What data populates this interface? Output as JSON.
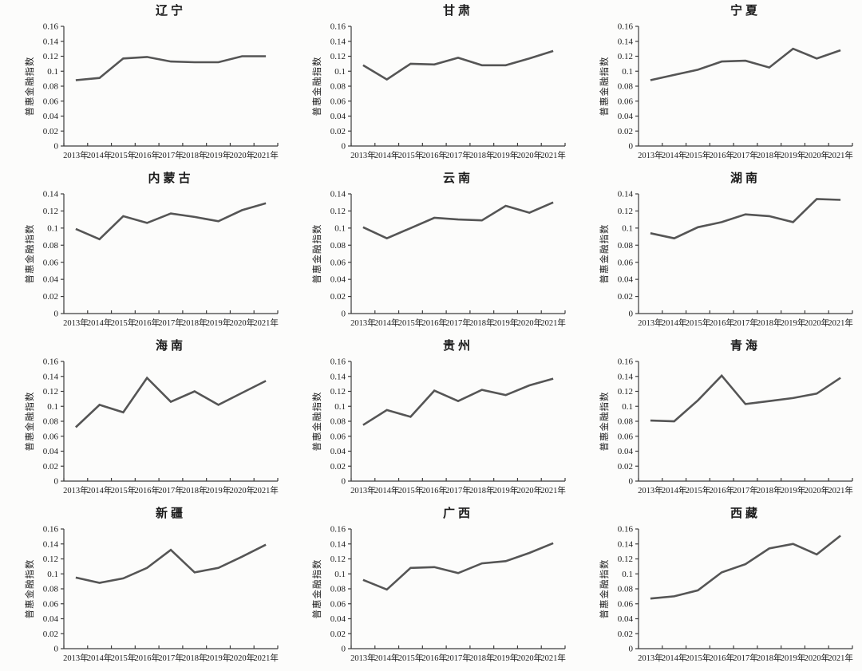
{
  "figure": {
    "background": "#fcfcfb",
    "line_color": "#555555",
    "axis_color": "#3d3d3d",
    "text_color": "#1b1b1b"
  },
  "chart_data": {
    "type": "line",
    "layout": {
      "rows": 4,
      "cols": 3,
      "legend": "none",
      "grid": "off"
    },
    "ylabel": "普惠金融指数",
    "x_categories": [
      "2013年",
      "2014年",
      "2015年",
      "2016年",
      "2017年",
      "2018年",
      "2019年",
      "2020年",
      "2021年"
    ],
    "ytick_step": 0.02,
    "charts": [
      {
        "id": "liaoning",
        "title": "辽宁",
        "ylim": [
          0,
          0.16
        ],
        "values": [
          0.088,
          0.091,
          0.117,
          0.119,
          0.113,
          0.112,
          0.112,
          0.12,
          0.12
        ]
      },
      {
        "id": "gansu",
        "title": "甘肃",
        "ylim": [
          0,
          0.16
        ],
        "values": [
          0.108,
          0.089,
          0.11,
          0.109,
          0.118,
          0.108,
          0.108,
          0.117,
          0.127
        ]
      },
      {
        "id": "ningxia",
        "title": "宁夏",
        "ylim": [
          0,
          0.16
        ],
        "values": [
          0.088,
          0.095,
          0.102,
          0.113,
          0.114,
          0.105,
          0.13,
          0.117,
          0.128
        ]
      },
      {
        "id": "neimenggu",
        "title": "内蒙古",
        "ylim": [
          0,
          0.14
        ],
        "values": [
          0.099,
          0.087,
          0.114,
          0.106,
          0.117,
          0.113,
          0.108,
          0.121,
          0.129
        ]
      },
      {
        "id": "yunnan",
        "title": "云南",
        "ylim": [
          0,
          0.14
        ],
        "values": [
          0.101,
          0.088,
          0.1,
          0.112,
          0.11,
          0.109,
          0.126,
          0.118,
          0.13
        ]
      },
      {
        "id": "hunan",
        "title": "湖南",
        "ylim": [
          0,
          0.14
        ],
        "values": [
          0.094,
          0.088,
          0.101,
          0.107,
          0.116,
          0.114,
          0.107,
          0.134,
          0.133
        ]
      },
      {
        "id": "hainan",
        "title": "海南",
        "ylim": [
          0,
          0.16
        ],
        "values": [
          0.072,
          0.102,
          0.092,
          0.138,
          0.106,
          0.12,
          0.102,
          0.118,
          0.134
        ]
      },
      {
        "id": "guizhou",
        "title": "贵州",
        "ylim": [
          0,
          0.16
        ],
        "values": [
          0.075,
          0.095,
          0.086,
          0.121,
          0.107,
          0.122,
          0.115,
          0.128,
          0.137
        ]
      },
      {
        "id": "qinghai",
        "title": "青海",
        "ylim": [
          0,
          0.16
        ],
        "values": [
          0.081,
          0.08,
          0.108,
          0.141,
          0.103,
          0.107,
          0.111,
          0.117,
          0.138
        ]
      },
      {
        "id": "xinjiang",
        "title": "新疆",
        "ylim": [
          0,
          0.16
        ],
        "values": [
          0.095,
          0.088,
          0.094,
          0.108,
          0.132,
          0.102,
          0.108,
          0.123,
          0.139
        ]
      },
      {
        "id": "guangxi",
        "title": "广西",
        "ylim": [
          0,
          0.16
        ],
        "values": [
          0.092,
          0.079,
          0.108,
          0.109,
          0.101,
          0.114,
          0.117,
          0.128,
          0.141
        ]
      },
      {
        "id": "xizang",
        "title": "西藏",
        "ylim": [
          0,
          0.16
        ],
        "values": [
          0.067,
          0.07,
          0.078,
          0.102,
          0.113,
          0.134,
          0.14,
          0.126,
          0.151
        ]
      }
    ]
  }
}
